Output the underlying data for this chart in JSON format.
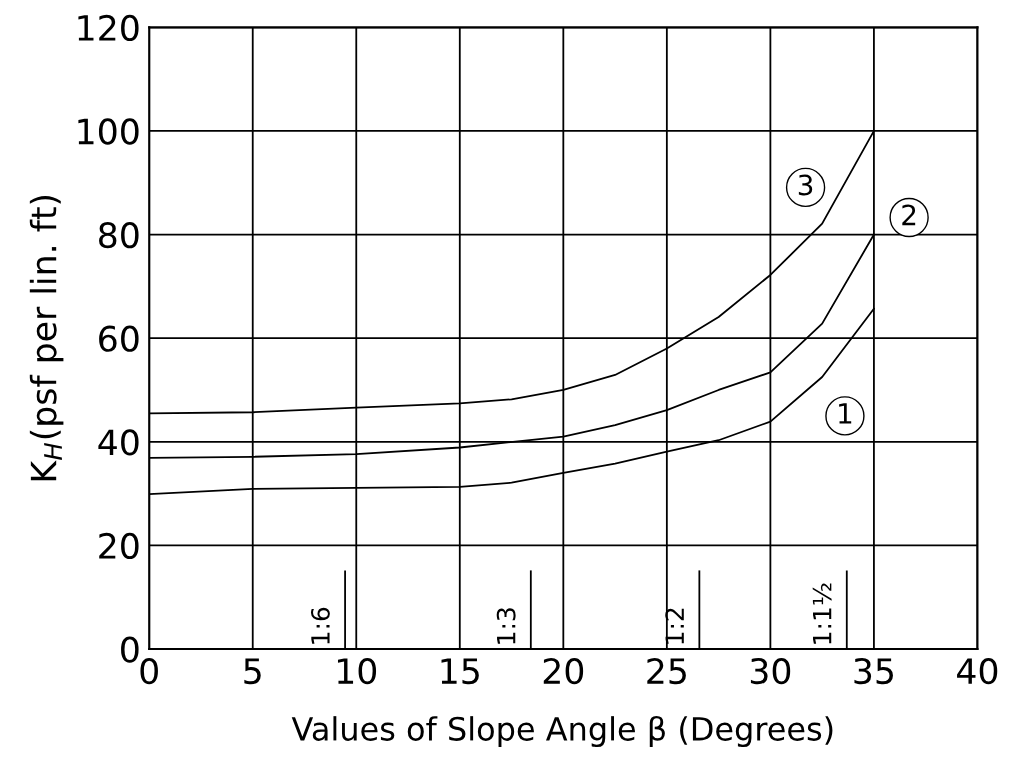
{
  "chart_data": {
    "type": "line",
    "xlabel": "Values of Slope Angle β (Degrees)",
    "ylabel": "K$_{H}$(psf per lin. ft)",
    "xlim": [
      0,
      40
    ],
    "xticks": [
      0,
      5,
      10,
      15,
      20,
      25,
      30,
      35,
      40
    ],
    "ylim": [
      0,
      120
    ],
    "yticks": [
      0,
      20,
      40,
      60,
      80,
      100,
      120
    ],
    "grid": true,
    "marker": "none",
    "line_style": "solid",
    "series": [
      {
        "color": "#000000",
        "x": [
          0,
          5,
          10,
          15,
          17.5,
          20,
          22.5,
          25,
          27.5,
          30,
          32.5,
          35
        ],
        "values": [
          29.9,
          30.9,
          31.1,
          31.3,
          32.1,
          34.0,
          35.8,
          38.1,
          40.3,
          43.9,
          52.5,
          65.7
        ]
      },
      {
        "color": "#000000",
        "x": [
          0,
          5,
          10,
          15,
          20,
          22.5,
          25,
          27.5,
          30,
          32.5,
          35
        ],
        "values": [
          36.9,
          37.1,
          37.6,
          38.9,
          41.0,
          43.2,
          46.1,
          50.0,
          53.4,
          62.8,
          80
        ]
      },
      {
        "color": "#000000",
        "x": [
          0,
          5,
          10,
          15,
          17.5,
          20,
          22.5,
          25,
          27.5,
          30,
          32.5,
          35
        ],
        "values": [
          45.5,
          45.7,
          46.6,
          47.4,
          48.2,
          50.0,
          52.9,
          58.0,
          64.1,
          72.2,
          82.1,
          100
        ]
      }
    ],
    "ref_lines": [
      {
        "axis": "x",
        "value": 9.46,
        "color": "#000000"
      },
      {
        "axis": "x",
        "value": 18.43,
        "color": "#000000"
      },
      {
        "axis": "x",
        "value": 26.57,
        "color": "#000000"
      },
      {
        "axis": "x",
        "value": 33.69,
        "color": "#000000"
      }
    ],
    "annotations": [
      {
        "text": "1:6",
        "x": 9.46,
        "y": 0
      },
      {
        "text": "1:3",
        "x": 18.43,
        "y": 0
      },
      {
        "text": "1:2",
        "x": 26.57,
        "y": 0
      },
      {
        "text": "1:1½",
        "x": 33.69,
        "y": 0
      },
      {
        "text": "1",
        "x": 33.6,
        "y": 45.0
      },
      {
        "text": "2",
        "x": 36.7,
        "y": 83.3
      },
      {
        "text": "3",
        "x": 31.7,
        "y": 89.1
      }
    ]
  }
}
